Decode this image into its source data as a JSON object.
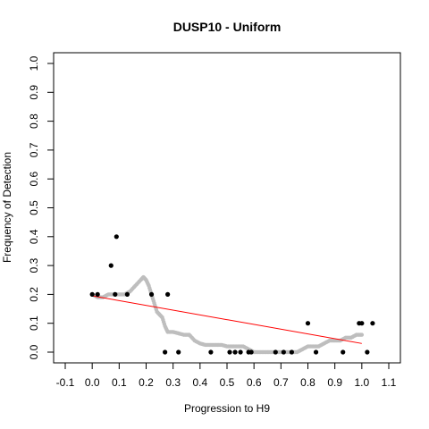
{
  "chart_data": {
    "type": "scatter",
    "title": "DUSP10 - Uniform",
    "xlabel": "Progression to H9",
    "ylabel": "Frequency of Detection",
    "xlim": [
      -0.1,
      1.1
    ],
    "ylim": [
      0.0,
      1.0
    ],
    "x_ticks": [
      "-0.1",
      "0.0",
      "0.1",
      "0.2",
      "0.3",
      "0.4",
      "0.5",
      "0.6",
      "0.7",
      "0.8",
      "0.9",
      "1.0",
      "1.1"
    ],
    "y_ticks": [
      "0.0",
      "0.1",
      "0.2",
      "0.3",
      "0.4",
      "0.5",
      "0.6",
      "0.7",
      "0.8",
      "0.9",
      "1.0"
    ],
    "grid": false,
    "legend": "none",
    "colors": {
      "observed": "#000000",
      "smoothed": "#bebebe",
      "fit_line": "#ff0000"
    },
    "series": [
      {
        "kind": "smoothed",
        "points": [
          [
            0.0,
            0.2
          ],
          [
            0.02,
            0.19
          ],
          [
            0.04,
            0.19
          ],
          [
            0.06,
            0.2
          ],
          [
            0.08,
            0.2
          ],
          [
            0.1,
            0.2
          ],
          [
            0.12,
            0.2
          ],
          [
            0.14,
            0.21
          ],
          [
            0.16,
            0.23
          ],
          [
            0.18,
            0.25
          ],
          [
            0.19,
            0.26
          ],
          [
            0.2,
            0.25
          ],
          [
            0.21,
            0.23
          ],
          [
            0.22,
            0.2
          ],
          [
            0.23,
            0.17
          ],
          [
            0.24,
            0.14
          ],
          [
            0.25,
            0.13
          ],
          [
            0.26,
            0.12
          ],
          [
            0.27,
            0.09
          ],
          [
            0.28,
            0.07
          ],
          [
            0.3,
            0.07
          ],
          [
            0.32,
            0.065
          ],
          [
            0.34,
            0.06
          ],
          [
            0.36,
            0.06
          ],
          [
            0.38,
            0.04
          ],
          [
            0.4,
            0.03
          ],
          [
            0.42,
            0.025
          ],
          [
            0.44,
            0.025
          ],
          [
            0.46,
            0.025
          ],
          [
            0.48,
            0.025
          ],
          [
            0.5,
            0.02
          ],
          [
            0.52,
            0.02
          ],
          [
            0.54,
            0.02
          ],
          [
            0.56,
            0.02
          ],
          [
            0.58,
            0.01
          ],
          [
            0.6,
            0.0
          ],
          [
            0.62,
            0.0
          ],
          [
            0.64,
            0.0
          ],
          [
            0.66,
            0.0
          ],
          [
            0.68,
            0.0
          ],
          [
            0.7,
            0.0
          ],
          [
            0.72,
            0.0
          ],
          [
            0.74,
            0.0
          ],
          [
            0.76,
            0.0
          ],
          [
            0.78,
            0.01
          ],
          [
            0.8,
            0.02
          ],
          [
            0.82,
            0.02
          ],
          [
            0.84,
            0.02
          ],
          [
            0.86,
            0.03
          ],
          [
            0.88,
            0.04
          ],
          [
            0.9,
            0.04
          ],
          [
            0.92,
            0.04
          ],
          [
            0.94,
            0.05
          ],
          [
            0.96,
            0.05
          ],
          [
            0.98,
            0.06
          ],
          [
            1.0,
            0.06
          ]
        ]
      },
      {
        "kind": "observed",
        "points": [
          [
            0.0,
            0.2
          ],
          [
            0.02,
            0.2
          ],
          [
            0.07,
            0.3
          ],
          [
            0.085,
            0.2
          ],
          [
            0.09,
            0.4
          ],
          [
            0.13,
            0.2
          ],
          [
            0.22,
            0.2
          ],
          [
            0.27,
            0.0
          ],
          [
            0.28,
            0.2
          ],
          [
            0.32,
            0.0
          ],
          [
            0.44,
            0.0
          ],
          [
            0.51,
            0.0
          ],
          [
            0.53,
            0.0
          ],
          [
            0.55,
            0.0
          ],
          [
            0.58,
            0.0
          ],
          [
            0.59,
            0.0
          ],
          [
            0.68,
            0.0
          ],
          [
            0.71,
            0.0
          ],
          [
            0.74,
            0.0
          ],
          [
            0.8,
            0.1
          ],
          [
            0.83,
            0.0
          ],
          [
            0.93,
            0.0
          ],
          [
            0.99,
            0.1
          ],
          [
            1.0,
            0.1
          ],
          [
            1.02,
            0.0
          ],
          [
            1.04,
            0.1
          ]
        ]
      }
    ],
    "fit_line": {
      "x": [
        0.0,
        1.0
      ],
      "y": [
        0.195,
        0.03
      ]
    }
  }
}
